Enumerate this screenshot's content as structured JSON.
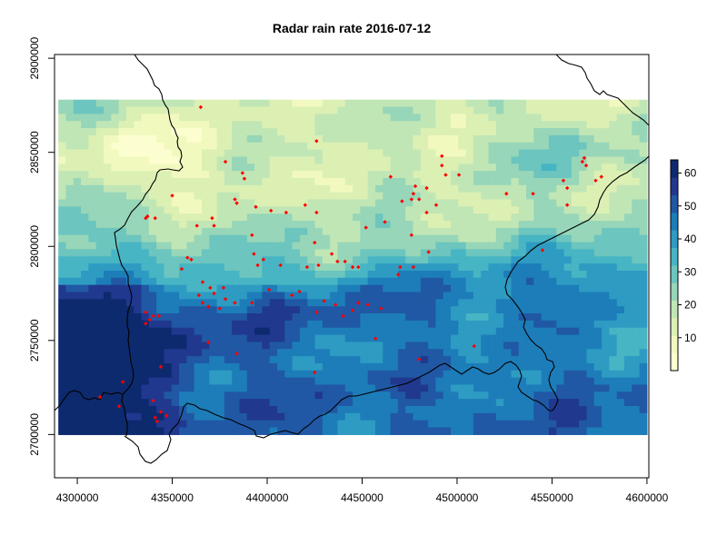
{
  "title": "Radar rain rate  2016-07-12",
  "x_axis": {
    "range": [
      4288000,
      4601000
    ],
    "ticks": [
      4300000,
      4350000,
      4400000,
      4450000,
      4500000,
      4550000,
      4600000
    ],
    "tick_labels": [
      "4300000",
      "4350000",
      "4400000",
      "4450000",
      "4500000",
      "4550000",
      "4600000"
    ]
  },
  "y_axis": {
    "range": [
      2677000,
      2902000
    ],
    "ticks": [
      2700000,
      2750000,
      2800000,
      2850000,
      2900000
    ],
    "tick_labels": [
      "2700000",
      "2750000",
      "2800000",
      "2850000",
      "2900000"
    ]
  },
  "raster_extent": {
    "x": [
      4290000,
      4600000
    ],
    "y": [
      2700000,
      2878000
    ]
  },
  "colorbar": {
    "min": 0,
    "max": 64,
    "ticks": [
      10,
      20,
      30,
      40,
      50,
      60
    ],
    "tick_labels": [
      "10",
      "20",
      "30",
      "40",
      "50",
      "60"
    ],
    "colors": [
      "#fdfed0",
      "#f2f9bf",
      "#dcf0b4",
      "#c1e6b5",
      "#97d6b8",
      "#6cc5be",
      "#47b5c3",
      "#2e9bc2",
      "#1d7db9",
      "#2058a5",
      "#21388f",
      "#0d2a6e"
    ]
  },
  "station_color": "#ff0000",
  "chart_data": {
    "type": "heatmap",
    "title": "Radar rain rate  2016-07-12",
    "xlabel": "",
    "ylabel": "",
    "xlim": [
      4288000,
      4601000
    ],
    "ylim": [
      2677000,
      2902000
    ],
    "value_range": [
      0,
      64
    ],
    "stations": [
      [
        4365000,
        2874000
      ],
      [
        4426000,
        2856000
      ],
      [
        4378000,
        2845000
      ],
      [
        4387000,
        2839000
      ],
      [
        4388000,
        2836000
      ],
      [
        4350000,
        2827000
      ],
      [
        4383000,
        2825000
      ],
      [
        4384000,
        2823000
      ],
      [
        4402000,
        2819000
      ],
      [
        4410000,
        2818000
      ],
      [
        4394000,
        2821000
      ],
      [
        4426000,
        2818000
      ],
      [
        4337000,
        2816000
      ],
      [
        4341000,
        2815000
      ],
      [
        4336000,
        2815000
      ],
      [
        4371000,
        2815000
      ],
      [
        4372000,
        2811000
      ],
      [
        4363000,
        2811000
      ],
      [
        4420000,
        2822000
      ],
      [
        4465000,
        2837000
      ],
      [
        4478000,
        2832000
      ],
      [
        4484000,
        2831000
      ],
      [
        4477000,
        2828000
      ],
      [
        4476000,
        2825000
      ],
      [
        4480000,
        2825000
      ],
      [
        4489000,
        2822000
      ],
      [
        4471000,
        2824000
      ],
      [
        4492000,
        2848000
      ],
      [
        4492000,
        2843000
      ],
      [
        4494000,
        2838000
      ],
      [
        4501000,
        2838000
      ],
      [
        4526000,
        2828000
      ],
      [
        4540000,
        2828000
      ],
      [
        4556000,
        2835000
      ],
      [
        4558000,
        2831000
      ],
      [
        4558000,
        2822000
      ],
      [
        4567000,
        2847000
      ],
      [
        4566000,
        2845000
      ],
      [
        4568000,
        2843000
      ],
      [
        4573000,
        2835000
      ],
      [
        4576000,
        2837000
      ],
      [
        4545000,
        2798000
      ],
      [
        4462000,
        2813000
      ],
      [
        4452000,
        2810000
      ],
      [
        4484000,
        2818000
      ],
      [
        4476000,
        2806000
      ],
      [
        4485000,
        2797000
      ],
      [
        4470000,
        2789000
      ],
      [
        4477000,
        2789000
      ],
      [
        4469000,
        2785000
      ],
      [
        4425000,
        2802000
      ],
      [
        4437000,
        2792000
      ],
      [
        4441000,
        2792000
      ],
      [
        4448000,
        2789000
      ],
      [
        4445000,
        2789000
      ],
      [
        4427000,
        2790000
      ],
      [
        4421000,
        2789000
      ],
      [
        4434000,
        2796000
      ],
      [
        4392000,
        2806000
      ],
      [
        4393000,
        2796000
      ],
      [
        4395000,
        2790000
      ],
      [
        4398000,
        2793000
      ],
      [
        4407000,
        2790000
      ],
      [
        4360000,
        2793000
      ],
      [
        4358000,
        2794000
      ],
      [
        4355000,
        2788000
      ],
      [
        4366000,
        2781000
      ],
      [
        4370000,
        2778000
      ],
      [
        4377000,
        2778000
      ],
      [
        4372000,
        2775000
      ],
      [
        4364000,
        2774000
      ],
      [
        4378000,
        2772000
      ],
      [
        4383000,
        2770000
      ],
      [
        4366000,
        2770000
      ],
      [
        4369000,
        2768000
      ],
      [
        4375000,
        2767000
      ],
      [
        4392000,
        2770000
      ],
      [
        4401000,
        2777000
      ],
      [
        4413000,
        2774000
      ],
      [
        4417000,
        2776000
      ],
      [
        4430000,
        2771000
      ],
      [
        4436000,
        2769000
      ],
      [
        4426000,
        2765000
      ],
      [
        4448000,
        2770000
      ],
      [
        4445000,
        2766000
      ],
      [
        4453000,
        2769000
      ],
      [
        4440000,
        2763000
      ],
      [
        4460000,
        2767000
      ],
      [
        4336000,
        2765000
      ],
      [
        4340000,
        2763000
      ],
      [
        4343000,
        2763000
      ],
      [
        4338000,
        2761000
      ],
      [
        4336000,
        2759000
      ],
      [
        4369000,
        2749000
      ],
      [
        4384000,
        2743000
      ],
      [
        4344000,
        2736000
      ],
      [
        4457000,
        2751000
      ],
      [
        4509000,
        2747000
      ],
      [
        4480000,
        2740000
      ],
      [
        4425000,
        2733000
      ],
      [
        4324000,
        2728000
      ],
      [
        4312000,
        2720000
      ],
      [
        4322000,
        2715000
      ],
      [
        4340000,
        2718000
      ],
      [
        4344000,
        2712000
      ],
      [
        4341000,
        2709000
      ],
      [
        4347000,
        2710000
      ],
      [
        4342000,
        2707000
      ]
    ]
  }
}
